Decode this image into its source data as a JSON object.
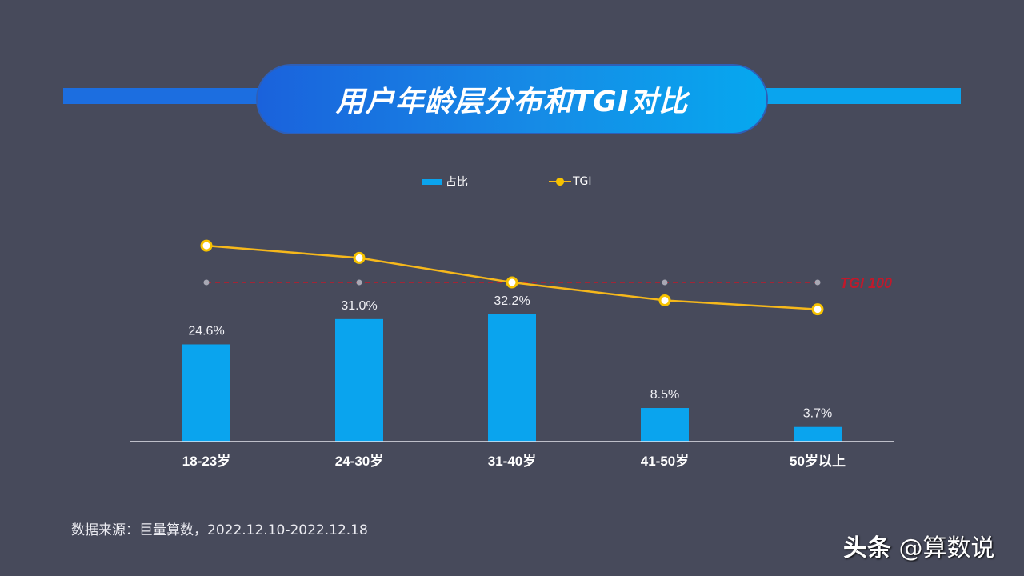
{
  "title": "用户年龄层分布和TGI对比",
  "legend": {
    "bar_label": "占比",
    "line_label": "TGI"
  },
  "reference_label": "TGI 100",
  "source_text": "数据来源：巨量算数，2022.12.10-2022.12.18",
  "watermark": {
    "brand": "头条",
    "handle": "@算数说"
  },
  "colors": {
    "background": "#474a5b",
    "bar": "#0aa4ee",
    "line": "#f6b81b",
    "reference_line": "#c0192b",
    "title_gradient_start": "#1a62dc",
    "title_gradient_end": "#06a8ef"
  },
  "chart_data": {
    "type": "bar",
    "title": "用户年龄层分布和TGI对比",
    "categories": [
      "18-23岁",
      "24-30岁",
      "31-40岁",
      "41-50岁",
      "50岁以上"
    ],
    "series": [
      {
        "name": "占比",
        "type": "bar",
        "values": [
          24.6,
          31.0,
          32.2,
          8.5,
          3.7
        ],
        "labels": [
          "24.6%",
          "31.0%",
          "32.2%",
          "8.5%",
          "3.7%"
        ]
      },
      {
        "name": "TGI",
        "type": "line",
        "values": [
          145,
          130,
          100,
          78,
          67
        ],
        "note": "approximate, relative to TGI 100 reference line"
      }
    ],
    "reference_lines": [
      {
        "name": "TGI 100",
        "value": 100,
        "style": "dashed",
        "color": "#c0192b"
      }
    ],
    "xlabel": "",
    "ylabel": "",
    "legend_position": "top",
    "grid": false
  }
}
